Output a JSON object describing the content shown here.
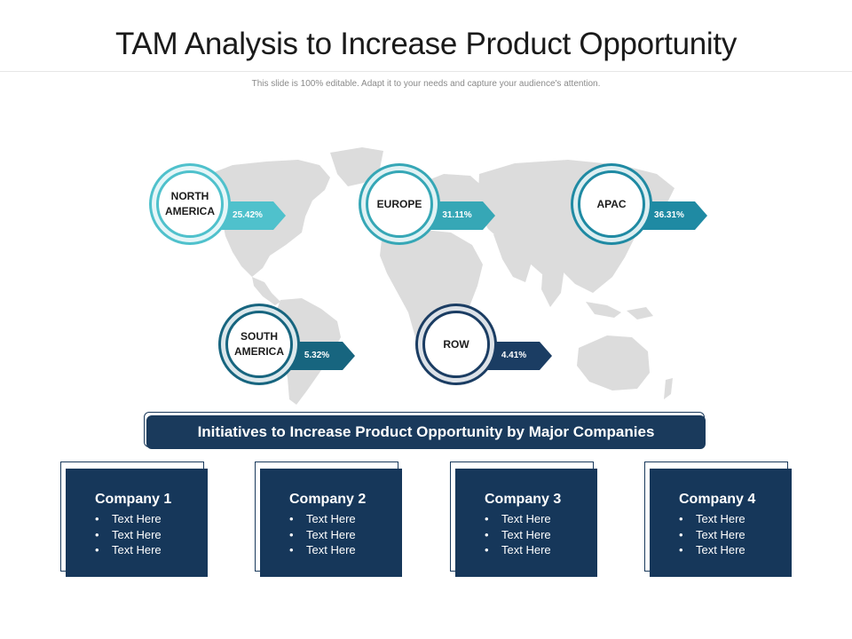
{
  "header": {
    "title": "TAM Analysis to Increase Product Opportunity",
    "subtitle": "This slide is 100% editable. Adapt it to your needs and capture your audience's attention."
  },
  "regions": [
    {
      "name": "NORTH\nAMERICA",
      "percent": "25.42%",
      "color": "#4fc1cc"
    },
    {
      "name": "EUROPE",
      "percent": "31.11%",
      "color": "#36a7b6"
    },
    {
      "name": "APAC",
      "percent": "36.31%",
      "color": "#1f8aa3"
    },
    {
      "name": "SOUTH\nAMERICA",
      "percent": "5.32%",
      "color": "#17657f"
    },
    {
      "name": "ROW",
      "percent": "4.41%",
      "color": "#1b3d63"
    }
  ],
  "banner": {
    "text": "Initiatives  to Increase Product Opportunity by Major Companies",
    "color": "#1a3a5c"
  },
  "companies": [
    {
      "name": "Company 1",
      "items": [
        "Text Here",
        "Text Here",
        "Text Here"
      ]
    },
    {
      "name": "Company 2",
      "items": [
        "Text Here",
        "Text Here",
        "Text Here"
      ]
    },
    {
      "name": "Company 3",
      "items": [
        "Text Here",
        "Text Here",
        "Text Here"
      ]
    },
    {
      "name": "Company 4",
      "items": [
        "Text Here",
        "Text Here",
        "Text Here"
      ]
    }
  ],
  "map": {
    "color": "#dcdcdc",
    "icon": "world-map"
  }
}
